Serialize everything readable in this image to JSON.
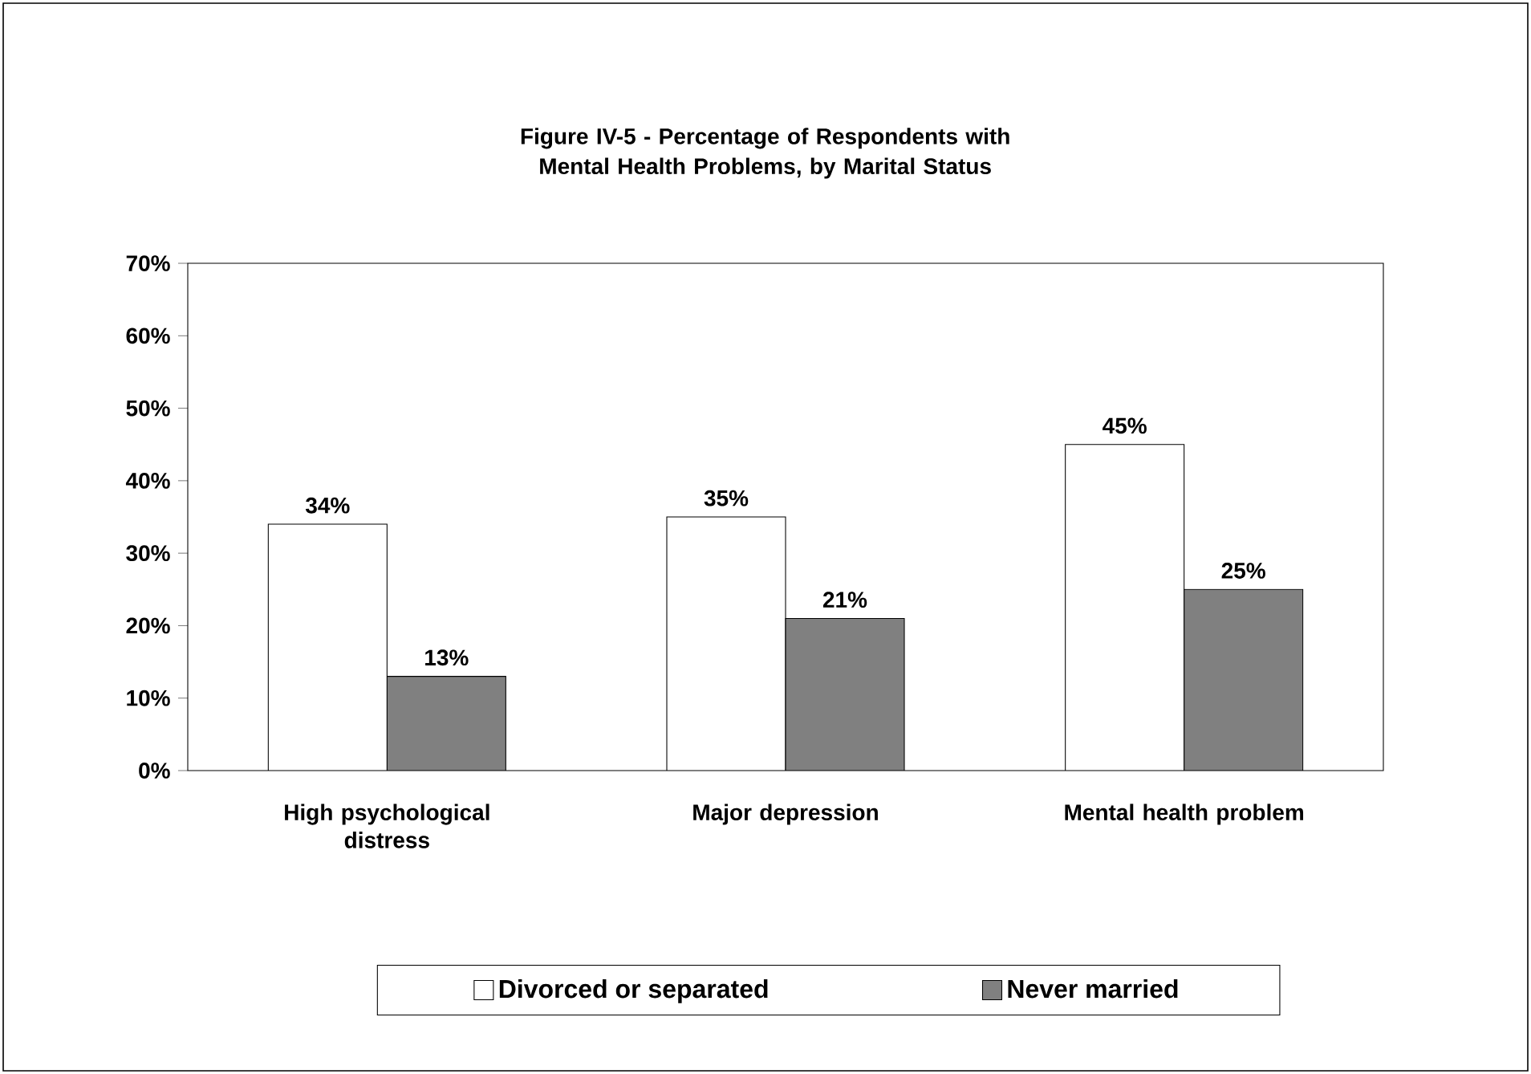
{
  "chart_data": {
    "type": "bar",
    "title": "Figure IV-5 - Percentage of Respondents with Mental Health Problems, by Marital Status",
    "categories": [
      "High psychological distress",
      "Major depression",
      "Mental health problem"
    ],
    "series": [
      {
        "name": "Divorced or separated",
        "color": "#ffffff",
        "values": [
          34,
          35,
          45
        ],
        "value_labels": [
          "34%",
          "35%",
          "45%"
        ]
      },
      {
        "name": "Never married",
        "color": "#808080",
        "values": [
          13,
          21,
          25
        ],
        "value_labels": [
          "13%",
          "21%",
          "25%"
        ]
      }
    ],
    "ylim": [
      0,
      70
    ],
    "yticks": [
      {
        "value": 0,
        "label": "0%"
      },
      {
        "value": 10,
        "label": "10%"
      },
      {
        "value": 20,
        "label": "20%"
      },
      {
        "value": 30,
        "label": "30%"
      },
      {
        "value": 40,
        "label": "40%"
      },
      {
        "value": 50,
        "label": "50%"
      },
      {
        "value": 60,
        "label": "60%"
      },
      {
        "value": 70,
        "label": "70%"
      }
    ],
    "grid": false,
    "legend": "bottom"
  }
}
